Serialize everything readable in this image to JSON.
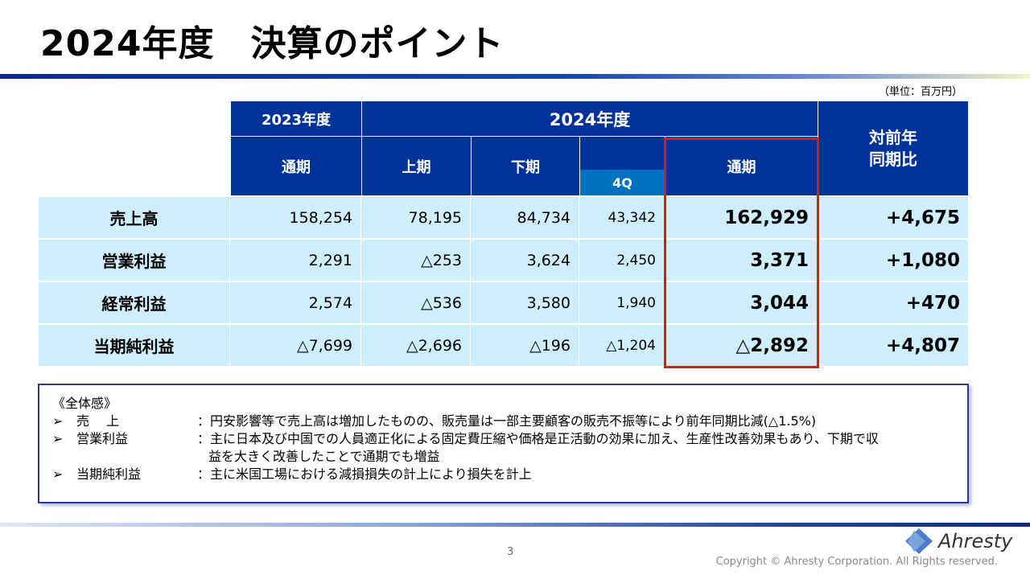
{
  "title": "2024年度　決算のポイント",
  "unit": "（単位：百万円）",
  "table": {
    "h_2023": "2023年度",
    "h_2024": "2024年度",
    "h_yoy": "対前年\n同期比",
    "sub": {
      "full2023": "通期",
      "h1": "上期",
      "h2": "下期",
      "q4": "4Q",
      "full2024": "通期"
    },
    "rows": [
      {
        "label": "売上高",
        "v": [
          "158,254",
          "78,195",
          "84,734",
          "43,342",
          "162,929",
          "+4,675"
        ]
      },
      {
        "label": "営業利益",
        "v": [
          "2,291",
          "△253",
          "3,624",
          "2,450",
          "3,371",
          "+1,080"
        ]
      },
      {
        "label": "経常利益",
        "v": [
          "2,574",
          "△536",
          "3,580",
          "1,940",
          "3,044",
          "+470"
        ]
      },
      {
        "label": "当期純利益",
        "v": [
          "△7,699",
          "△2,696",
          "△196",
          "△1,204",
          "△2,892",
          "+4,807"
        ]
      }
    ]
  },
  "summary": {
    "heading": "《全体感》",
    "items": [
      {
        "key": "売　 上",
        "text": "：円安影響等で売上高は増加したものの、販売量は一部主要顧客の販売不振等により前年同期比減(△1.5%)"
      },
      {
        "key": "営業利益",
        "text": "：主に日本及び中国での人員適正化による固定費圧縮や価格是正活動の効果に加え、生産性改善効果もあり、下期で収",
        "cont": "益を大きく改善したことで通期でも増益"
      },
      {
        "key": "当期純利益",
        "text": "：主に米国工場における減損損失の計上により損失を計上"
      }
    ]
  },
  "footer": {
    "page": "3",
    "copyright": "Copyright © Ahresty Corporation. All Rights reserved.",
    "logo": "Ahresty"
  },
  "colors": {
    "header": "#003399",
    "q4": "#0070c0",
    "body": "#cfeefc",
    "highlight": "#e0161c"
  }
}
